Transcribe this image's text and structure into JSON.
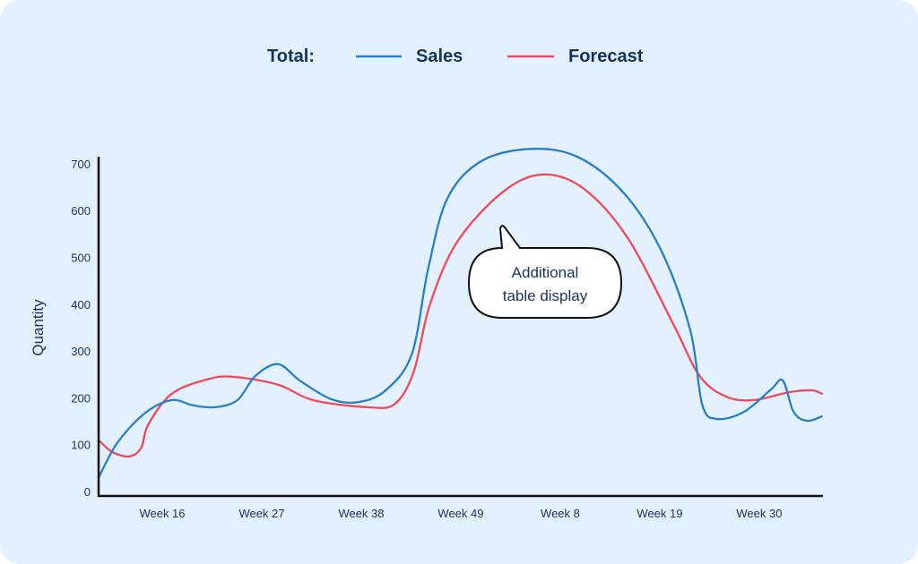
{
  "chart_data": {
    "type": "line",
    "title": "",
    "xlabel": "",
    "ylabel": "Quantity",
    "ylim": [
      0,
      700
    ],
    "xlim": [
      9,
      89
    ],
    "yticks": [
      0,
      100,
      200,
      300,
      400,
      500,
      600,
      700
    ],
    "xticks": [
      {
        "x": 16,
        "label": "Week 16"
      },
      {
        "x": 27,
        "label": "Week 27"
      },
      {
        "x": 38,
        "label": "Week 38"
      },
      {
        "x": 49,
        "label": "Week 49"
      },
      {
        "x": 60,
        "label": "Week 8"
      },
      {
        "x": 71,
        "label": "Week 19"
      },
      {
        "x": 82,
        "label": "Week 30"
      }
    ],
    "grid": false,
    "legend": {
      "placement": "top-center",
      "prefix": "Total:"
    },
    "annotation": {
      "line1": "Additional",
      "line2": "table display",
      "x": 58,
      "y": 540
    },
    "series": [
      {
        "name": "Sales",
        "color": "#2a7fc4",
        "points": [
          [
            9,
            31
          ],
          [
            11,
            103
          ],
          [
            14,
            166
          ],
          [
            17,
            195
          ],
          [
            19.4,
            184
          ],
          [
            21.8,
            180
          ],
          [
            24.3,
            195
          ],
          [
            26.3,
            247
          ],
          [
            28.8,
            272
          ],
          [
            31.2,
            237
          ],
          [
            34.7,
            197
          ],
          [
            37.7,
            191
          ],
          [
            40.7,
            216
          ],
          [
            43.6,
            294
          ],
          [
            45.4,
            476
          ],
          [
            47.6,
            629
          ],
          [
            51.6,
            709
          ],
          [
            57.5,
            732
          ],
          [
            62.5,
            709
          ],
          [
            67.4,
            629
          ],
          [
            71.4,
            505
          ],
          [
            74.4,
            342
          ],
          [
            75.7,
            185
          ],
          [
            77.3,
            155
          ],
          [
            80.3,
            170
          ],
          [
            83.3,
            218
          ],
          [
            84.6,
            237
          ],
          [
            85.8,
            170
          ],
          [
            87.3,
            151
          ],
          [
            89,
            161
          ]
        ]
      },
      {
        "name": "Forecast",
        "color": "#f04a5a",
        "points": [
          [
            9,
            109
          ],
          [
            10.5,
            84
          ],
          [
            12.4,
            75
          ],
          [
            13.7,
            94
          ],
          [
            14.4,
            141
          ],
          [
            17,
            208
          ],
          [
            20.9,
            239
          ],
          [
            23.8,
            245
          ],
          [
            28.8,
            228
          ],
          [
            32.7,
            195
          ],
          [
            38.7,
            180
          ],
          [
            41.7,
            187
          ],
          [
            43.8,
            256
          ],
          [
            45.6,
            400
          ],
          [
            48.6,
            533
          ],
          [
            53.6,
            639
          ],
          [
            58,
            677
          ],
          [
            62.5,
            648
          ],
          [
            67.4,
            543
          ],
          [
            72.4,
            361
          ],
          [
            75.4,
            247
          ],
          [
            78.3,
            203
          ],
          [
            81.3,
            195
          ],
          [
            85.3,
            212
          ],
          [
            87.8,
            216
          ],
          [
            89,
            208
          ]
        ]
      }
    ]
  }
}
